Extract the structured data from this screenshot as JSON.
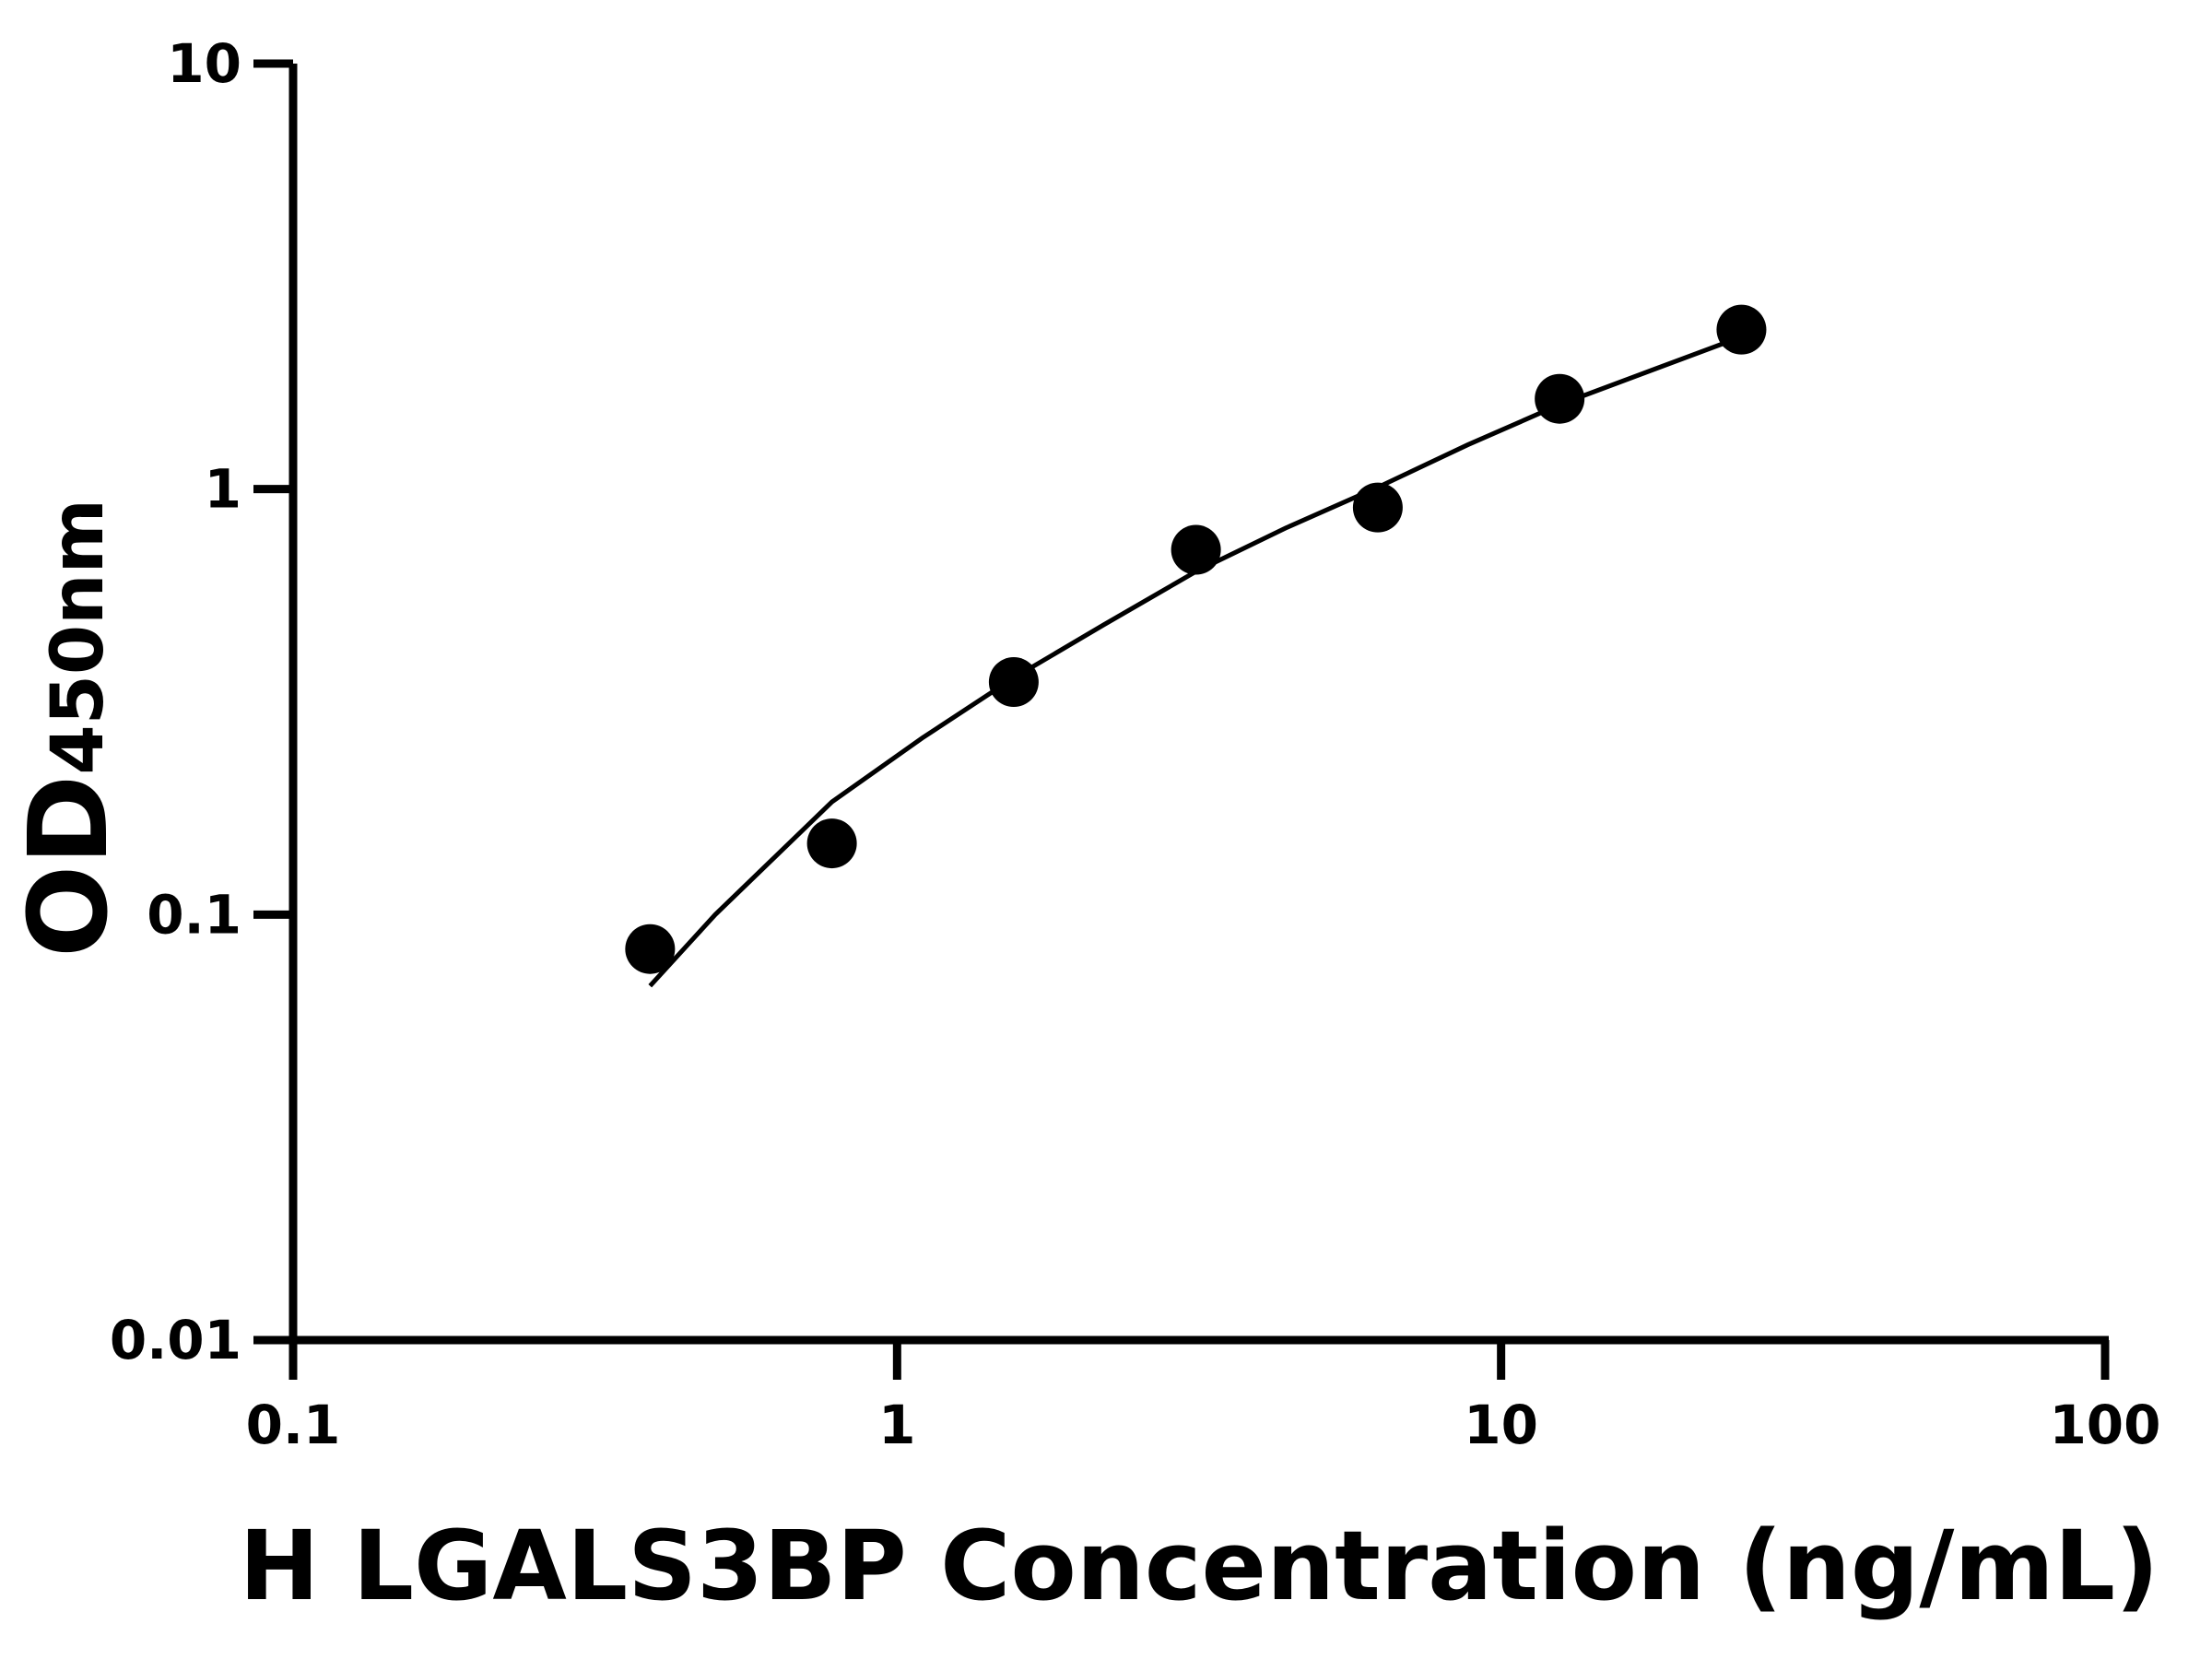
{
  "chart_data": {
    "type": "scatter",
    "x_label": "H LGALS3BP Concentration (ng/mL)",
    "y_label": {
      "main": "OD",
      "sub": "450nm"
    },
    "x": [
      0.39,
      0.78,
      1.56,
      3.125,
      6.25,
      12.5,
      25
    ],
    "values": [
      0.083,
      0.147,
      0.352,
      0.72,
      0.905,
      1.63,
      2.37
    ],
    "color": "#000000",
    "fit": {
      "x": [
        0.39,
        0.5,
        0.78,
        1.1,
        1.56,
        2.2,
        3.125,
        4.4,
        6.25,
        8.8,
        12.5,
        17.7,
        25
      ],
      "y": [
        0.068,
        0.1,
        0.184,
        0.26,
        0.36,
        0.48,
        0.64,
        0.81,
        1.01,
        1.27,
        1.58,
        1.9,
        2.28
      ]
    },
    "log_x": true,
    "log_y": true,
    "xlim": [
      0.1,
      100
    ],
    "ylim": [
      0.01,
      10
    ],
    "xticks": [
      0.1,
      1,
      10,
      100
    ],
    "yticks": [
      0.01,
      0.1,
      1,
      10
    ]
  }
}
